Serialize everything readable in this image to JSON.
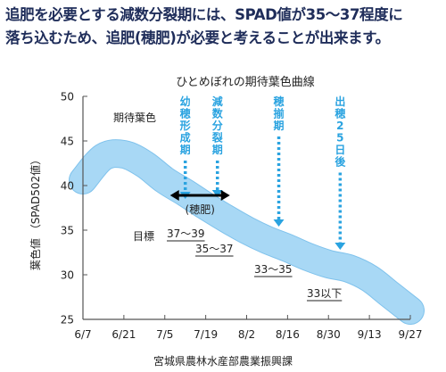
{
  "headline": {
    "line1": "追肥を必要とする減数分裂期には、SPAD値が35～37程度に",
    "line2": "落ち込むため、追肥(穂肥)が必要と考えることが出来ます。"
  },
  "source": "宮城県農林水産部農業振興課",
  "colors": {
    "band": "#a8d8f5",
    "band_edge": "#7fc2ec",
    "marker": "#2aa3e0",
    "axis": "#555555",
    "text": "#1f2d5a"
  },
  "chart_data": {
    "type": "area",
    "title": "ひとめぼれの期待葉色曲線",
    "ylabel": "葉色値 （SPAD502値）",
    "xlabel": "",
    "x_ticks": [
      "6/7",
      "6/21",
      "7/5",
      "7/19",
      "8/2",
      "8/16",
      "8/30",
      "9/13",
      "9/27"
    ],
    "y_ticks": [
      25,
      30,
      35,
      40,
      45,
      50
    ],
    "xlim": [
      "6/7",
      "9/27"
    ],
    "ylim": [
      25,
      50
    ],
    "grid": false,
    "series": [
      {
        "name": "期待葉色",
        "center": [
          [
            "6/7",
            40.6
          ],
          [
            "6/14",
            43.2
          ],
          [
            "6/21",
            43.5
          ],
          [
            "6/28",
            42.4
          ],
          [
            "7/5",
            40.6
          ],
          [
            "7/12",
            39.2
          ],
          [
            "7/19",
            37.7
          ],
          [
            "7/26",
            36.3
          ],
          [
            "8/2",
            35.0
          ],
          [
            "8/9",
            33.9
          ],
          [
            "8/16",
            33.0
          ],
          [
            "8/23",
            32.0
          ],
          [
            "8/30",
            31.2
          ],
          [
            "9/6",
            30.7
          ],
          [
            "9/13",
            29.6
          ],
          [
            "9/20",
            27.8
          ],
          [
            "9/27",
            26.0
          ]
        ],
        "band_width": 3.0
      }
    ],
    "annotations": {
      "series_label": "期待葉色",
      "target_label": "目標",
      "stages": [
        {
          "label": "幼穂形成期",
          "date": "7/12"
        },
        {
          "label": "減数分裂期",
          "date": "7/23"
        },
        {
          "label": "穂揃期",
          "date": "8/13"
        },
        {
          "label": "出穂25日後",
          "date": "9/3"
        }
      ],
      "targets": [
        {
          "text": "37～39"
        },
        {
          "text": "35～37"
        },
        {
          "text": "33～35"
        },
        {
          "text": "33以下"
        }
      ],
      "bracket_label": "(穂肥)"
    }
  }
}
